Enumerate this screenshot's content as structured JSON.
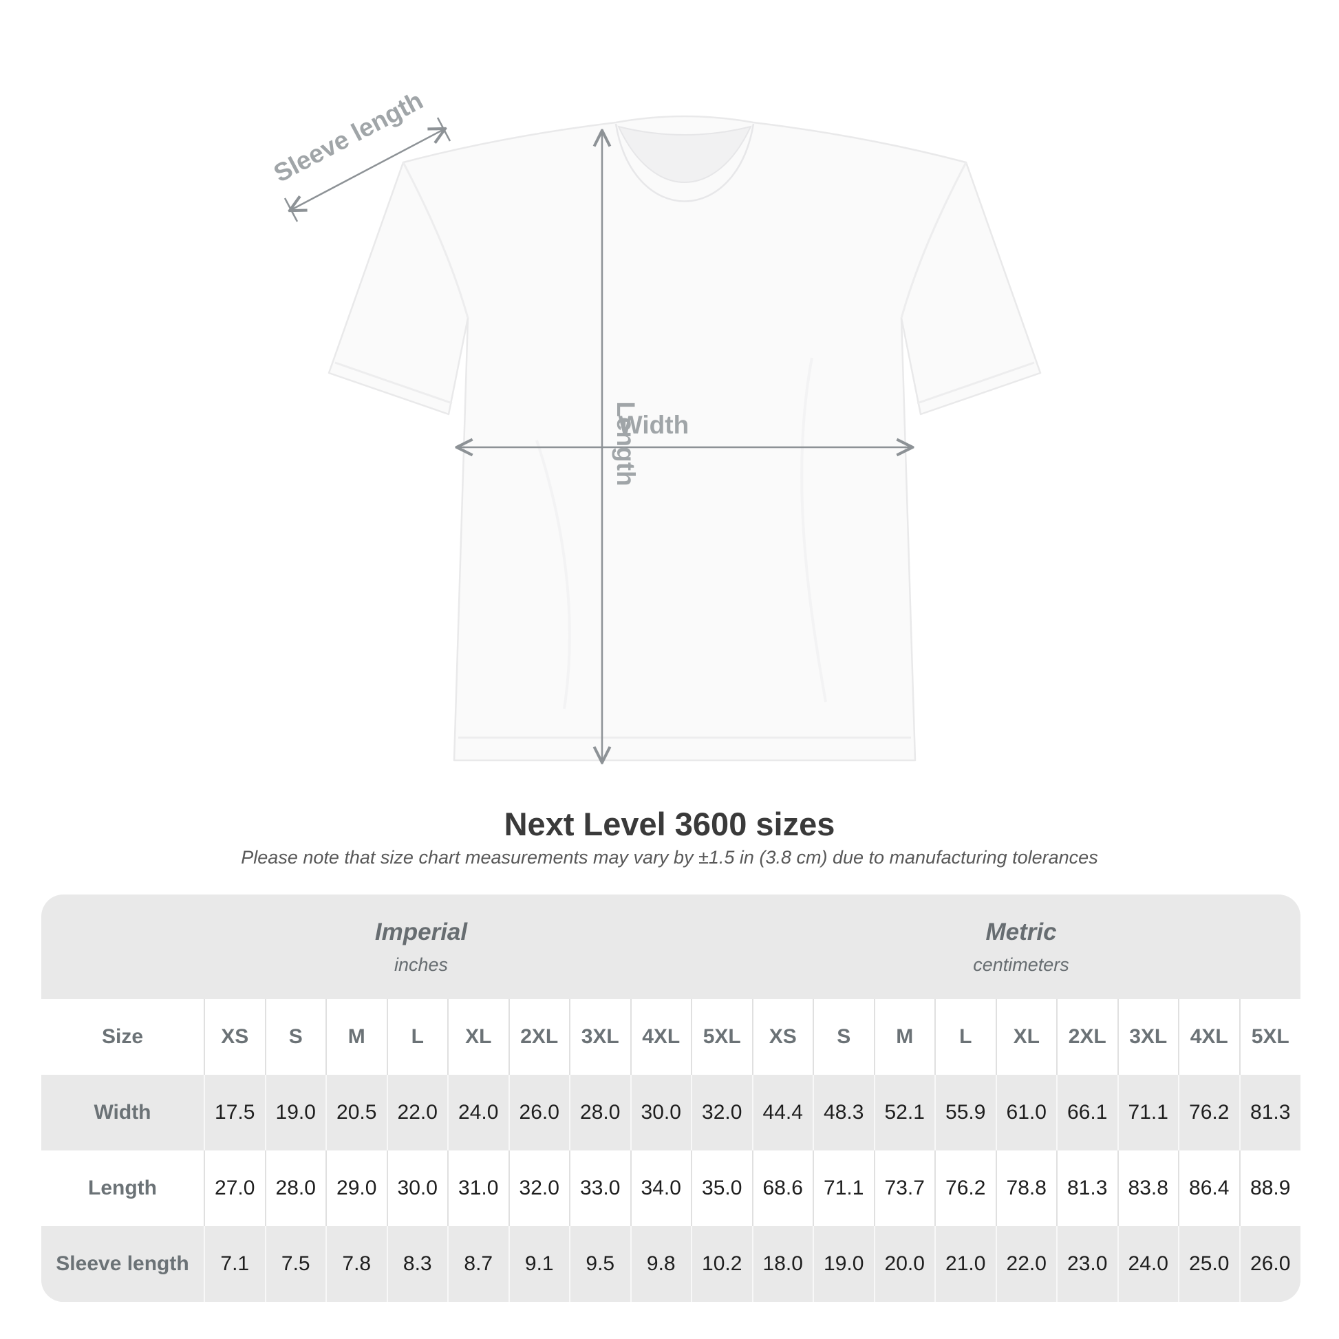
{
  "diagram": {
    "sleeve_label": "Sleeve length",
    "length_label": "Length",
    "width_label": "Width"
  },
  "title": "Next Level 3600 sizes",
  "subtitle": "Please note that size chart measurements may vary by ±1.5 in (3.8 cm) due to manufacturing tolerances",
  "units": {
    "imperial": {
      "name": "Imperial",
      "sub": "inches"
    },
    "metric": {
      "name": "Metric",
      "sub": "centimeters"
    }
  },
  "table": {
    "size_label": "Size",
    "sizes": [
      "XS",
      "S",
      "M",
      "L",
      "XL",
      "2XL",
      "3XL",
      "4XL",
      "5XL"
    ],
    "rows": [
      {
        "label": "Width",
        "imperial": [
          "17.5",
          "19.0",
          "20.5",
          "22.0",
          "24.0",
          "26.0",
          "28.0",
          "30.0",
          "32.0"
        ],
        "metric": [
          "44.4",
          "48.3",
          "52.1",
          "55.9",
          "61.0",
          "66.1",
          "71.1",
          "76.2",
          "81.3"
        ]
      },
      {
        "label": "Length",
        "imperial": [
          "27.0",
          "28.0",
          "29.0",
          "30.0",
          "31.0",
          "32.0",
          "33.0",
          "34.0",
          "35.0"
        ],
        "metric": [
          "68.6",
          "71.1",
          "73.7",
          "76.2",
          "78.8",
          "81.3",
          "83.8",
          "86.4",
          "88.9"
        ]
      },
      {
        "label": "Sleeve length",
        "imperial": [
          "7.1",
          "7.5",
          "7.8",
          "8.3",
          "8.7",
          "9.1",
          "9.5",
          "9.8",
          "10.2"
        ],
        "metric": [
          "18.0",
          "19.0",
          "20.0",
          "21.0",
          "22.0",
          "23.0",
          "24.0",
          "25.0",
          "26.0"
        ]
      }
    ]
  },
  "colors": {
    "dimension_line": "#8d9296",
    "dimension_label": "#a0a5a8",
    "table_band": "#e9e9e9",
    "header_text": "#6b7276",
    "value_text": "#1e1e1e",
    "title_text": "#3a3a3a"
  }
}
